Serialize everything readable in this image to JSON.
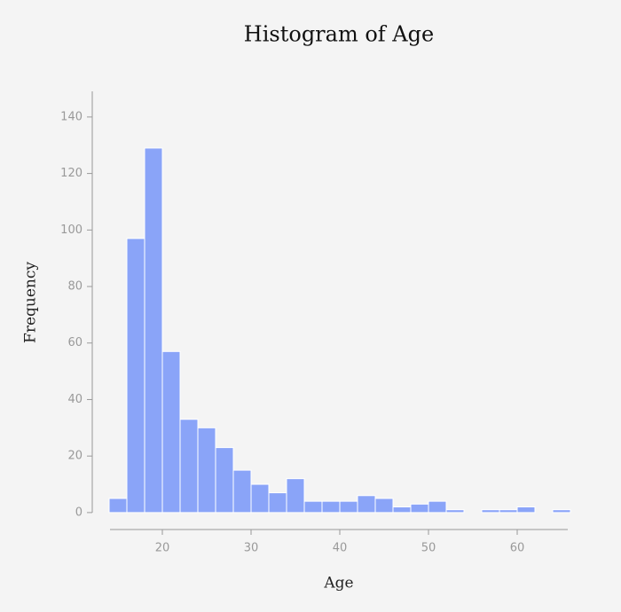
{
  "chart_data": {
    "type": "histogram",
    "title": "Histogram of Age",
    "x_label": "Age",
    "y_label": "Frequency",
    "bins": [
      14,
      16,
      18,
      20,
      22,
      24,
      26,
      28,
      30,
      32,
      34,
      36,
      38,
      40,
      42,
      44,
      46,
      48,
      50,
      52,
      54,
      56,
      58,
      60,
      62,
      64,
      66
    ],
    "values": [
      5,
      97,
      129,
      57,
      33,
      30,
      23,
      15,
      10,
      7,
      12,
      4,
      4,
      4,
      6,
      5,
      2,
      3,
      4,
      1,
      0,
      1,
      1,
      2,
      0,
      1
    ],
    "color": "#8aa4f8",
    "xlim": [
      14,
      66
    ],
    "xticks": [
      20,
      30,
      40,
      50,
      60
    ],
    "ylim": [
      -6,
      149
    ],
    "yticks": [
      0,
      20,
      40,
      60,
      80,
      100,
      120,
      140
    ]
  }
}
